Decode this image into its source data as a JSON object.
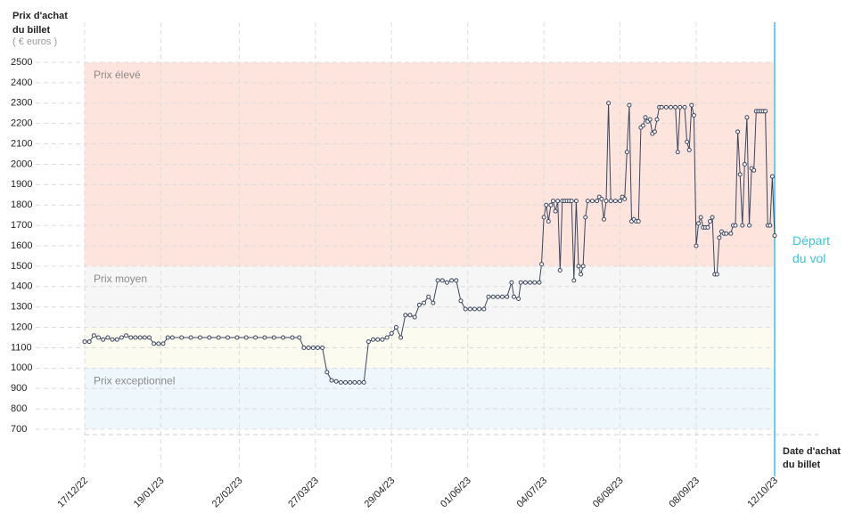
{
  "chart_data": {
    "type": "line",
    "y_label": [
      "Prix d'achat",
      "du billet"
    ],
    "y_unit": "( € euros )",
    "x_label": [
      "Date d'achat",
      "du billet"
    ],
    "departure": {
      "label": [
        "Départ",
        "du vol"
      ],
      "x": "12/10/23",
      "color": "#3cc3de"
    },
    "bands": [
      {
        "label": "Prix élevé",
        "from": 1500,
        "to": 2500,
        "color": "#fde4dd"
      },
      {
        "label": "Prix moyen",
        "from": 1200,
        "to": 1500,
        "color": "#f6f6f6"
      },
      {
        "from": 1000,
        "to": 1200,
        "color": "#fbfbef"
      },
      {
        "label": "Prix exceptionnel",
        "from": 700,
        "to": 1000,
        "color": "#eef7fb"
      }
    ],
    "ylim": [
      700,
      2500
    ],
    "yticks": [
      700,
      800,
      900,
      1000,
      1100,
      1200,
      1300,
      1400,
      1500,
      1600,
      1700,
      1800,
      1900,
      2000,
      2100,
      2200,
      2300,
      2400,
      2500
    ],
    "xlim": [
      "17/12/22",
      "12/10/23"
    ],
    "xticks": [
      "17/12/22",
      "19/01/23",
      "22/02/23",
      "27/03/23",
      "29/04/23",
      "01/06/23",
      "04/07/23",
      "06/08/23",
      "08/09/23",
      "12/10/23"
    ],
    "grid": true,
    "line_color": "#3a4660",
    "x": [
      "17/12/22",
      "19/12/22",
      "21/12/22",
      "23/12/22",
      "25/12/22",
      "27/12/22",
      "29/12/22",
      "31/12/22",
      "02/01/23",
      "04/01/23",
      "06/01/23",
      "08/01/23",
      "10/01/23",
      "12/01/23",
      "14/01/23",
      "16/01/23",
      "18/01/23",
      "20/01/23",
      "22/01/23",
      "24/01/23",
      "28/01/23",
      "01/02/23",
      "05/02/23",
      "09/02/23",
      "13/02/23",
      "17/02/23",
      "21/02/23",
      "25/02/23",
      "01/03/23",
      "05/03/23",
      "09/03/23",
      "13/03/23",
      "17/03/23",
      "20/03/23",
      "22/03/23",
      "24/03/23",
      "26/03/23",
      "28/03/23",
      "30/03/23",
      "01/04/23",
      "03/04/23",
      "05/04/23",
      "07/04/23",
      "09/04/23",
      "11/04/23",
      "13/04/23",
      "15/04/23",
      "17/04/23",
      "19/04/23",
      "21/04/23",
      "23/04/23",
      "25/04/23",
      "27/04/23",
      "29/04/23",
      "01/05/23",
      "03/05/23",
      "05/05/23",
      "07/05/23",
      "09/05/23",
      "11/05/23",
      "13/05/23",
      "15/05/23",
      "17/05/23",
      "19/05/23",
      "21/05/23",
      "23/05/23",
      "25/05/23",
      "27/05/23",
      "29/05/23",
      "31/05/23",
      "02/06/23",
      "04/06/23",
      "06/06/23",
      "08/06/23",
      "10/06/23",
      "12/06/23",
      "14/06/23",
      "16/06/23",
      "18/06/23",
      "20/06/23",
      "21/06/23",
      "23/06/23",
      "24/06/23",
      "26/06/23",
      "28/06/23",
      "30/06/23",
      "02/07/23",
      "03/07/23",
      "04/07/23",
      "05/07/23",
      "06/07/23",
      "07/07/23",
      "08/07/23",
      "09/07/23",
      "10/07/23",
      "11/07/23",
      "12/07/23",
      "13/07/23",
      "14/07/23",
      "15/07/23",
      "16/07/23",
      "17/07/23",
      "18/07/23",
      "19/07/23",
      "20/07/23",
      "21/07/23",
      "22/07/23",
      "23/07/23",
      "25/07/23",
      "27/07/23",
      "28/07/23",
      "29/07/23",
      "30/07/23",
      "31/07/23",
      "01/08/23",
      "02/08/23",
      "04/08/23",
      "06/08/23",
      "07/08/23",
      "08/08/23",
      "09/08/23",
      "10/08/23",
      "11/08/23",
      "12/08/23",
      "13/08/23",
      "14/08/23",
      "15/08/23",
      "16/08/23",
      "17/08/23",
      "18/08/23",
      "19/08/23",
      "20/08/23",
      "21/08/23",
      "22/08/23",
      "23/08/23",
      "24/08/23",
      "26/08/23",
      "28/08/23",
      "30/08/23",
      "31/08/23",
      "01/09/23",
      "03/09/23",
      "04/09/23",
      "05/09/23",
      "06/09/23",
      "07/09/23",
      "08/09/23",
      "09/09/23",
      "10/09/23",
      "11/09/23",
      "12/09/23",
      "13/09/23",
      "14/09/23",
      "15/09/23",
      "16/09/23",
      "17/09/23",
      "18/09/23",
      "19/09/23",
      "20/09/23",
      "21/09/23",
      "23/09/23",
      "24/09/23",
      "25/09/23",
      "26/09/23",
      "27/09/23",
      "28/09/23",
      "29/09/23",
      "30/09/23",
      "01/10/23",
      "02/10/23",
      "03/10/23",
      "04/10/23",
      "05/10/23",
      "06/10/23",
      "07/10/23",
      "08/10/23",
      "09/10/23",
      "10/10/23",
      "11/10/23",
      "12/10/23"
    ],
    "values": [
      1130,
      1130,
      1160,
      1150,
      1140,
      1150,
      1140,
      1140,
      1150,
      1160,
      1150,
      1150,
      1150,
      1150,
      1150,
      1120,
      1120,
      1120,
      1150,
      1150,
      1150,
      1150,
      1150,
      1150,
      1150,
      1150,
      1150,
      1150,
      1150,
      1150,
      1150,
      1150,
      1150,
      1150,
      1100,
      1100,
      1100,
      1100,
      1100,
      980,
      940,
      935,
      930,
      930,
      930,
      930,
      930,
      930,
      1130,
      1140,
      1140,
      1140,
      1150,
      1170,
      1200,
      1150,
      1260,
      1260,
      1250,
      1310,
      1320,
      1350,
      1320,
      1430,
      1430,
      1420,
      1430,
      1430,
      1330,
      1290,
      1290,
      1290,
      1290,
      1290,
      1350,
      1350,
      1350,
      1350,
      1350,
      1420,
      1350,
      1340,
      1420,
      1420,
      1420,
      1420,
      1420,
      1510,
      1740,
      1800,
      1720,
      1800,
      1820,
      1770,
      1820,
      1480,
      1820,
      1820,
      1820,
      1820,
      1820,
      1430,
      1820,
      1500,
      1460,
      1500,
      1740,
      1820,
      1820,
      1820,
      1840,
      1830,
      1730,
      1820,
      2300,
      1820,
      1820,
      1820,
      1840,
      1830,
      2060,
      2290,
      1720,
      1730,
      1720,
      1720,
      2180,
      2190,
      2230,
      2210,
      2220,
      2150,
      2160,
      2220,
      2280,
      2280,
      2280,
      2280,
      2280,
      2060,
      2280,
      2280,
      2110,
      2070,
      2290,
      2240,
      1600,
      1710,
      1740,
      1690,
      1690,
      1690,
      1720,
      1740,
      1460,
      1460,
      1640,
      1670,
      1660,
      1660,
      1660,
      1700,
      1700,
      2160,
      1950,
      1700,
      2000,
      2230,
      1700,
      1980,
      1970,
      2260,
      2260,
      2260,
      2260,
      2260,
      1700,
      1700,
      1940,
      1650
    ]
  }
}
